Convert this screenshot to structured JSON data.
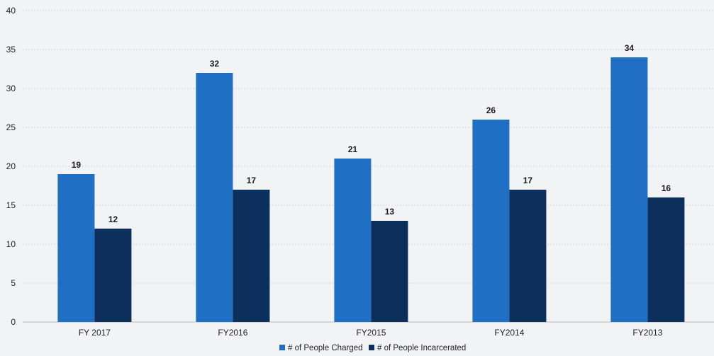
{
  "chart_data": {
    "type": "bar",
    "categories": [
      "FY 2017",
      "FY2016",
      "FY2015",
      "FY2014",
      "FY2013"
    ],
    "series": [
      {
        "name": "# of People Charged",
        "values": [
          19,
          32,
          21,
          26,
          34
        ],
        "color": "#1f6fc4"
      },
      {
        "name": "# of People Incarcerated",
        "values": [
          12,
          17,
          13,
          17,
          16
        ],
        "color": "#0d2f5c"
      }
    ],
    "yticks": [
      0,
      5,
      10,
      15,
      20,
      25,
      30,
      35,
      40
    ],
    "ylim": [
      0,
      40
    ],
    "grid": true,
    "legend_position": "bottom-center",
    "data_labels": true
  }
}
